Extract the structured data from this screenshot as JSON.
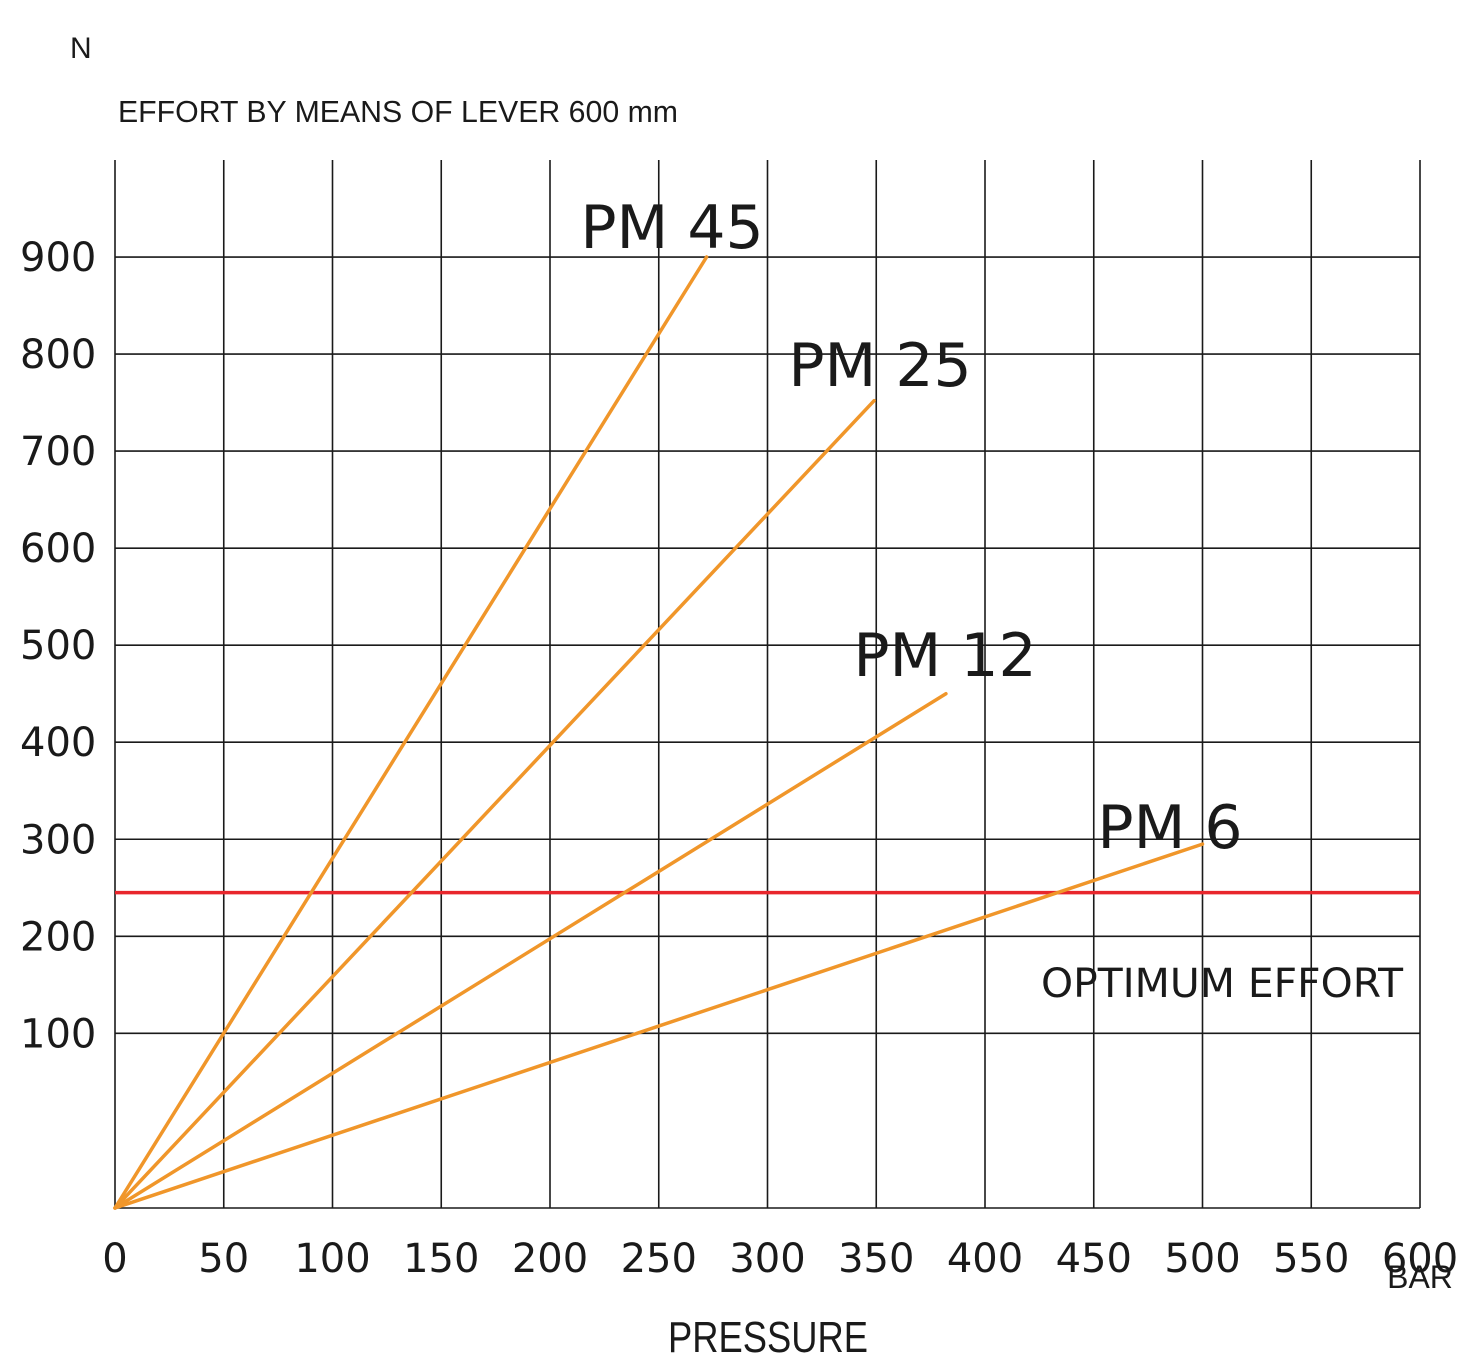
{
  "chart_data": {
    "type": "line",
    "y_unit_label": "N",
    "ylabel": "EFFORT BY MEANS OF LEVER 600 mm",
    "xlabel": "PRESSURE",
    "x_unit_label": "BAR",
    "xlim": [
      0,
      600
    ],
    "ylim": [
      -80,
      1000
    ],
    "x_ticks": [
      0,
      50,
      100,
      150,
      200,
      250,
      300,
      350,
      400,
      450,
      500,
      550,
      600
    ],
    "y_ticks": [
      100,
      200,
      300,
      400,
      500,
      600,
      700,
      800,
      900
    ],
    "x_tick_labels": [
      "0",
      "50",
      "100",
      "150",
      "200",
      "250",
      "300",
      "350",
      "400",
      "450",
      "500",
      "550",
      "600"
    ],
    "y_tick_labels": [
      "100",
      "200",
      "300",
      "400",
      "500",
      "600",
      "700",
      "800",
      "900"
    ],
    "grid": true,
    "series": [
      {
        "name": "PM 45",
        "color": "#f0962a",
        "points": [
          [
            0,
            -80
          ],
          [
            272,
            900
          ]
        ]
      },
      {
        "name": "PM 25",
        "color": "#f0962a",
        "points": [
          [
            0,
            -80
          ],
          [
            349,
            752
          ]
        ]
      },
      {
        "name": "PM 12",
        "color": "#f0962a",
        "points": [
          [
            0,
            -80
          ],
          [
            382,
            450
          ]
        ]
      },
      {
        "name": "PM 6",
        "color": "#f0962a",
        "points": [
          [
            0,
            -80
          ],
          [
            500,
            295
          ]
        ]
      }
    ],
    "reference_line": {
      "label": "OPTIMUM EFFORT",
      "y": 245,
      "color": "#e8262c"
    }
  }
}
